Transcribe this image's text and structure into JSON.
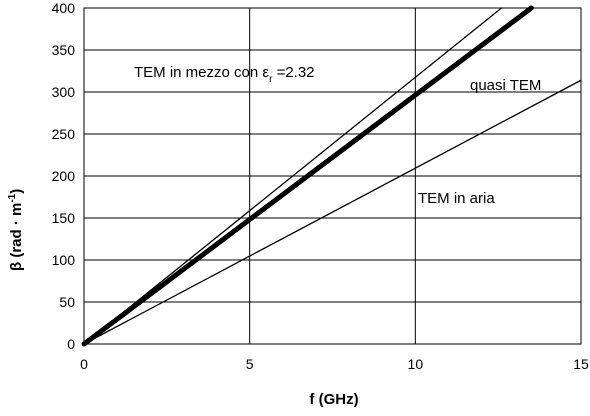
{
  "chart_data": {
    "type": "line",
    "xlabel": "f (GHz)",
    "ylabel_main": "β  (rad · m",
    "ylabel_sup": "-1",
    "ylabel_end": ")",
    "xlim": [
      0,
      15
    ],
    "ylim": [
      0,
      400
    ],
    "x_ticks": [
      "0",
      "5",
      "10",
      "15"
    ],
    "y_ticks": [
      "0",
      "50",
      "100",
      "150",
      "200",
      "250",
      "300",
      "350",
      "400"
    ],
    "grid": true,
    "series": [
      {
        "key": "tem_dielectric",
        "x": [
          0,
          12.6
        ],
        "y": [
          0,
          400
        ],
        "weight": "thin",
        "color": "#000000"
      },
      {
        "key": "quasi_tem",
        "x": [
          0,
          13.5
        ],
        "y": [
          0,
          400
        ],
        "weight": "thick",
        "color": "#000000"
      },
      {
        "key": "tem_air",
        "x": [
          0,
          15
        ],
        "y": [
          0,
          314
        ],
        "weight": "thin",
        "color": "#000000"
      }
    ],
    "annotations": {
      "tem_dielectric_pre": "TEM in mezzo con ε",
      "tem_dielectric_sub": "r",
      "tem_dielectric_post": " =2.32",
      "quasi_tem": "quasi TEM",
      "tem_air": "TEM in aria"
    }
  }
}
